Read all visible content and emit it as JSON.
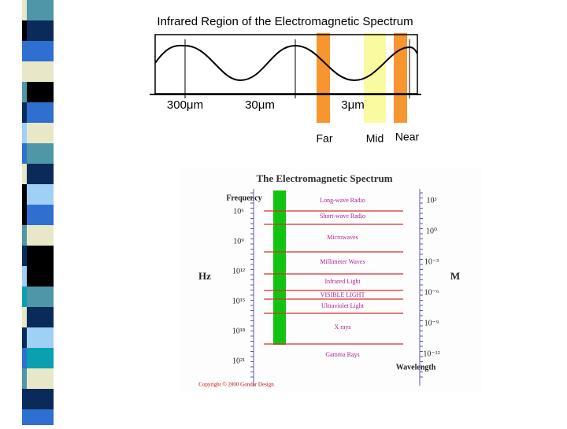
{
  "top_diagram": {
    "title": "Infrared Region of the Electromagnetic Spectrum",
    "wavelength_labels": [
      "300μm",
      "30μm",
      "3μm"
    ],
    "region_labels": [
      "Far",
      "Mid",
      "Near"
    ]
  },
  "bottom_diagram": {
    "title": "The Electromagnetic Spectrum",
    "frequency_label": "Frequency",
    "frequency_unit": "Hz",
    "frequencies": [
      "10⁶",
      "10⁹",
      "10¹²",
      "10¹⁵",
      "10¹⁸",
      "10²¹"
    ],
    "bands": [
      "Long-wave Radio",
      "Short-wave Radio",
      "Microwaves",
      "Millimeter Waves",
      "Infrared Light",
      "VISIBLE LIGHT",
      "Ultraviolet Light",
      "X rays",
      "Gamma Rays"
    ],
    "wavelengths": [
      "10³",
      "10⁰",
      "10⁻³",
      "10⁻⁶",
      "10⁻⁹",
      "10⁻¹²"
    ],
    "wavelength_unit": "M",
    "wavelength_label": "Wavelength",
    "copyright": "Copyright © 2000 Gondar Design"
  }
}
